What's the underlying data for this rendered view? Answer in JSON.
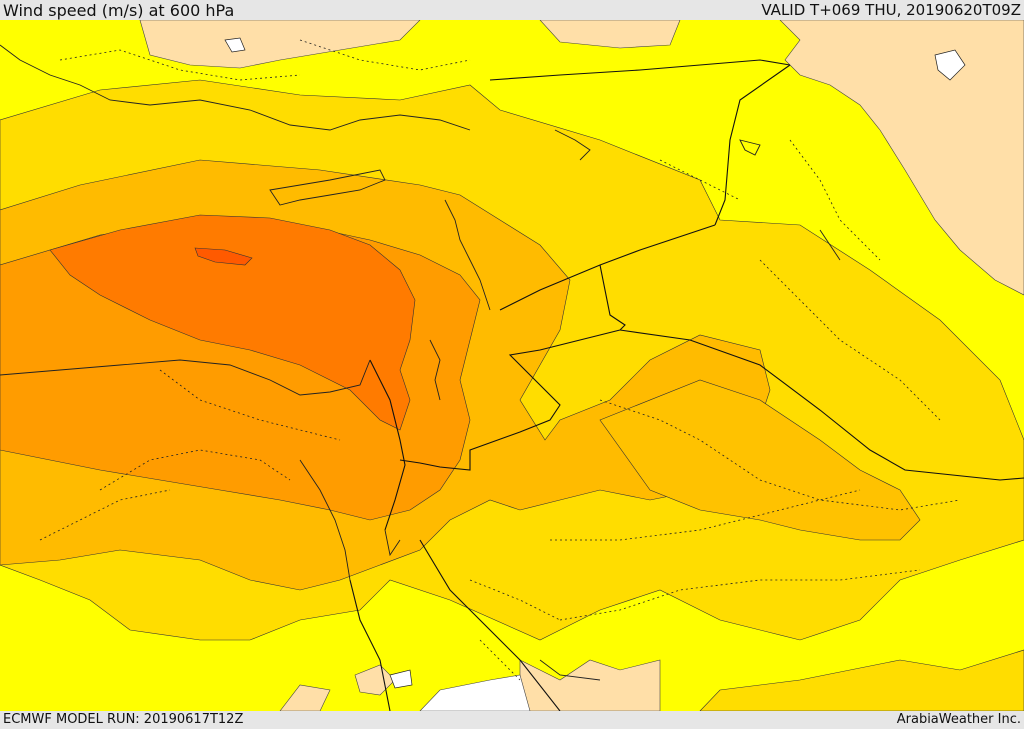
{
  "header": {
    "title": "Wind speed (m/s) at 600 hPa",
    "valid_time": "VALID T+069 THU, 20190620T09Z"
  },
  "footer": {
    "model_run": "ECMWF MODEL RUN: 20190617T12Z",
    "credit": "ArabiaWeather Inc."
  },
  "map": {
    "variable": "wind speed",
    "units": "m/s",
    "level_hpa": 600,
    "fill_colors": {
      "lowest": "#ffdfa8",
      "low": "#ffff00",
      "medium_low": "#ffdd00",
      "medium": "#ffbb00",
      "medium_high": "#ff9c00",
      "high": "#ff7b00",
      "highest": "#ff5a00"
    }
  }
}
